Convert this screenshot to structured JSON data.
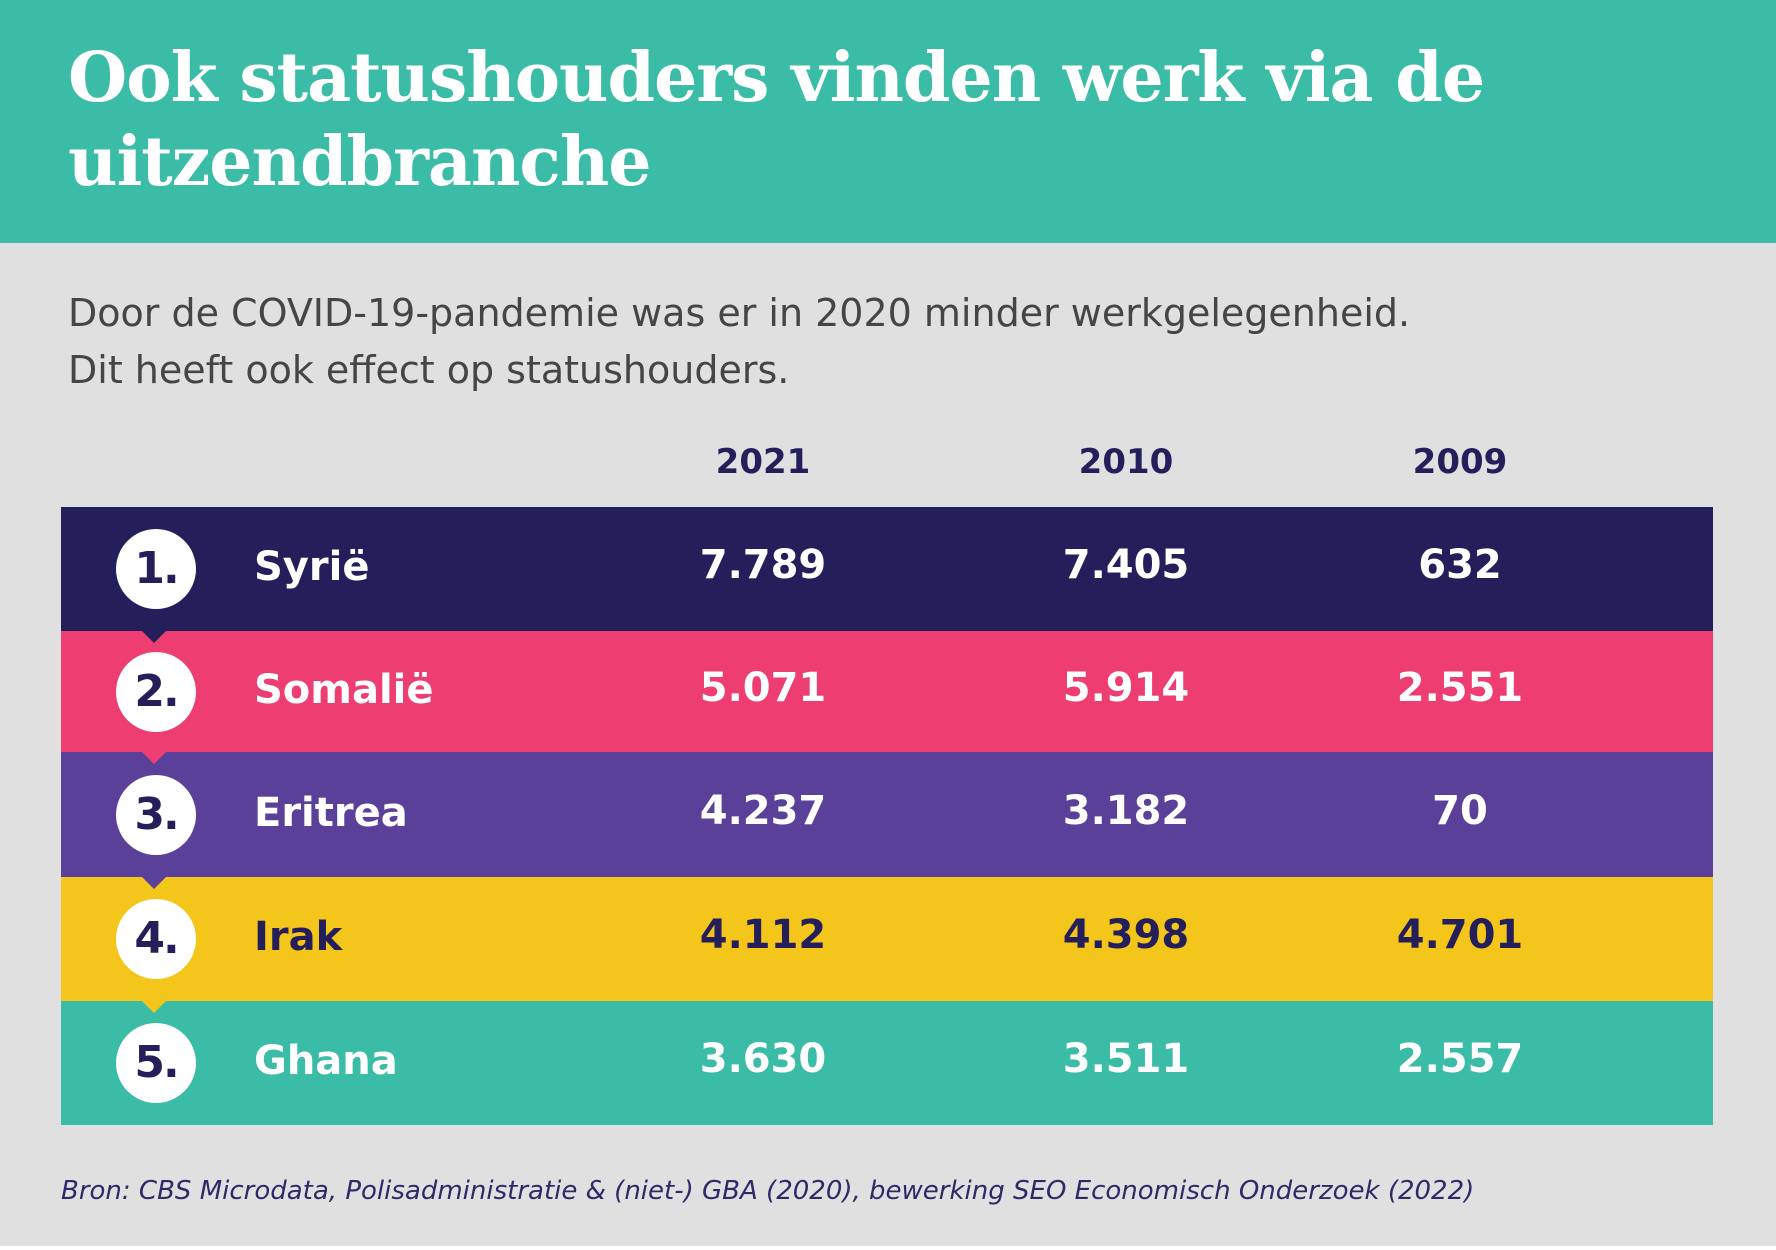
{
  "header": {
    "title": "Ook statushouders vinden werk via de uitzendbranche"
  },
  "subtitle": {
    "line1": "Door de COVID-19-pandemie was er in 2020 minder werkgelegenheid.",
    "line2": "Dit heeft ook effect op statushouders."
  },
  "source": "Bron: CBS Microdata, Polisadministratie & (niet-) GBA (2020), bewerking SEO Economisch Onderzoek (2022)",
  "colors": {
    "header": "#3bbca6",
    "background": "#e0e0e0",
    "navy": "#241f5b",
    "pink": "#ee3d70",
    "purple": "#5b409a",
    "yellow": "#f4c51b",
    "teal": "#3bbca6"
  },
  "chart_data": {
    "type": "table",
    "columns": [
      "2021",
      "2010",
      "2009"
    ],
    "rows": [
      {
        "rank": "1.",
        "country": "Syrië",
        "values": [
          "7.789",
          "7.405",
          "632"
        ],
        "color": "#241f5b",
        "text_color": "#ffffff"
      },
      {
        "rank": "2.",
        "country": "Somalië",
        "values": [
          "5.071",
          "5.914",
          "2.551"
        ],
        "color": "#ee3d70",
        "text_color": "#ffffff"
      },
      {
        "rank": "3.",
        "country": "Eritrea",
        "values": [
          "4.237",
          "3.182",
          "70"
        ],
        "color": "#5b409a",
        "text_color": "#ffffff"
      },
      {
        "rank": "4.",
        "country": "Irak",
        "values": [
          "4.112",
          "4.398",
          "4.701"
        ],
        "color": "#f4c51b",
        "text_color": "#241f5b"
      },
      {
        "rank": "5.",
        "country": "Ghana",
        "values": [
          "3.630",
          "3.511",
          "2.557"
        ],
        "color": "#3bbca6",
        "text_color": "#ffffff"
      }
    ]
  }
}
